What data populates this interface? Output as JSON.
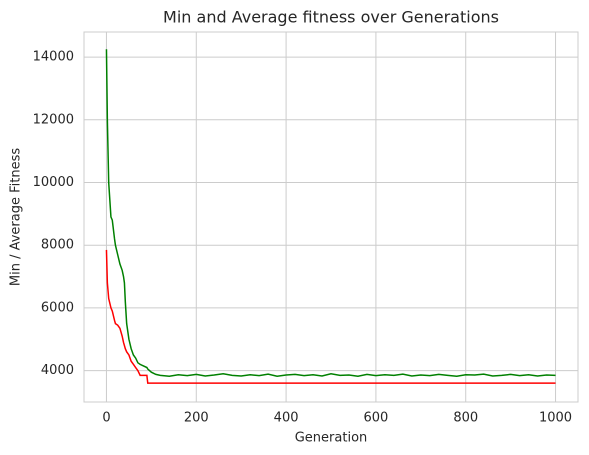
{
  "chart_data": {
    "type": "line",
    "title": "Min and Average fitness over Generations",
    "x_label": "Generation",
    "y_label": "Min / Average Fitness",
    "x": [
      0,
      2,
      5,
      10,
      13,
      18,
      20,
      25,
      30,
      35,
      38,
      40,
      42,
      45,
      50,
      55,
      60,
      65,
      70,
      75,
      90,
      92,
      100,
      110,
      120,
      140,
      160,
      180,
      200,
      220,
      240,
      260,
      280,
      300,
      320,
      340,
      360,
      380,
      400,
      420,
      440,
      460,
      480,
      500,
      520,
      540,
      560,
      580,
      600,
      620,
      640,
      660,
      680,
      700,
      720,
      740,
      760,
      780,
      800,
      820,
      840,
      860,
      880,
      900,
      920,
      940,
      960,
      980,
      1000
    ],
    "series": [
      {
        "color": "#ff0000",
        "values": [
          7850,
          6800,
          6300,
          6000,
          5900,
          5600,
          5500,
          5450,
          5350,
          5100,
          4900,
          4800,
          4700,
          4600,
          4500,
          4300,
          4200,
          4100,
          4000,
          3850,
          3850,
          3600,
          3600,
          3600,
          3600,
          3600,
          3600,
          3600,
          3600,
          3600,
          3600,
          3600,
          3600,
          3600,
          3600,
          3600,
          3600,
          3600,
          3600,
          3600,
          3600,
          3600,
          3600,
          3600,
          3600,
          3600,
          3600,
          3600,
          3600,
          3600,
          3600,
          3600,
          3600,
          3600,
          3600,
          3600,
          3600,
          3600,
          3600,
          3600,
          3600,
          3600,
          3600,
          3600,
          3600,
          3600,
          3600,
          3600,
          3600
        ]
      },
      {
        "color": "#008000",
        "values": [
          14250,
          12000,
          10000,
          8900,
          8800,
          8200,
          8000,
          7700,
          7400,
          7200,
          7000,
          6800,
          6200,
          5500,
          5000,
          4700,
          4500,
          4400,
          4250,
          4200,
          4100,
          4050,
          3950,
          3880,
          3850,
          3820,
          3870,
          3840,
          3880,
          3830,
          3860,
          3900,
          3850,
          3830,
          3870,
          3840,
          3890,
          3820,
          3860,
          3880,
          3840,
          3870,
          3830,
          3900,
          3850,
          3860,
          3820,
          3880,
          3840,
          3870,
          3850,
          3890,
          3830,
          3860,
          3840,
          3880,
          3850,
          3820,
          3870,
          3860,
          3890,
          3830,
          3850,
          3880,
          3840,
          3870,
          3830,
          3860,
          3850
        ]
      }
    ],
    "xlim": [
      -50,
      1050
    ],
    "ylim": [
      3000,
      14800
    ],
    "xticks": [
      0,
      200,
      400,
      600,
      800,
      1000
    ],
    "yticks": [
      4000,
      6000,
      8000,
      10000,
      12000,
      14000
    ],
    "grid": true
  }
}
